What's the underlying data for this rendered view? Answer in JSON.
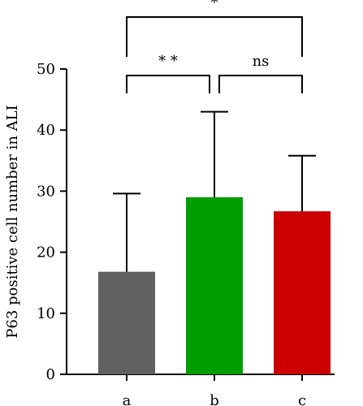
{
  "chart_data": {
    "type": "bar",
    "title": "",
    "xlabel": "",
    "ylabel": "P63 positive cell number in ALI",
    "ylim": [
      0,
      50
    ],
    "yticks": [
      0,
      10,
      20,
      30,
      40,
      50
    ],
    "grid": false,
    "categories": [
      "a",
      "b",
      "c"
    ],
    "values": [
      16.8,
      29.0,
      26.7
    ],
    "error_upper": [
      29.6,
      43.0,
      35.8
    ],
    "colors": [
      "#616161",
      "#009e00",
      "#cc0000"
    ],
    "significance": [
      {
        "from": "a",
        "to": "b",
        "label": "* *"
      },
      {
        "from": "b",
        "to": "c",
        "label": "ns"
      },
      {
        "from": "a",
        "to": "c",
        "label": "*"
      }
    ]
  }
}
